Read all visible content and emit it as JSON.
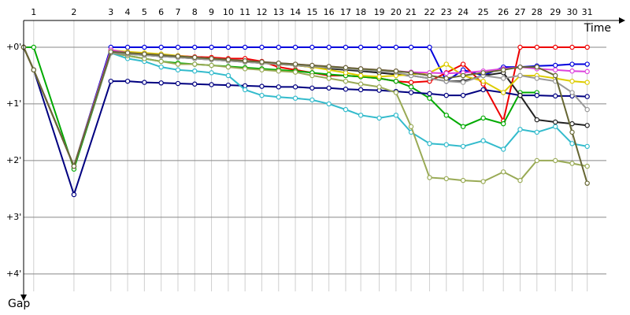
{
  "chart_data": {
    "type": "line",
    "x_label": "Time",
    "y_label": "Gap",
    "x": [
      0,
      0.6,
      3.0,
      5.2,
      6.2,
      7.2,
      8.2,
      9.2,
      10.2,
      11.2,
      12.2,
      13.2,
      14.2,
      15.2,
      16.2,
      17.2,
      18.2,
      19.2,
      20.1,
      21.2,
      22.2,
      23.1,
      24.2,
      25.2,
      26.2,
      27.4,
      28.6,
      29.6,
      30.6,
      31.7,
      32.7,
      33.6
    ],
    "xlim": [
      0,
      36.15
    ],
    "xticks": [
      {
        "value": 0.6,
        "label": "1"
      },
      {
        "value": 3.0,
        "label": "2"
      },
      {
        "value": 5.2,
        "label": "3"
      },
      {
        "value": 6.2,
        "label": "4"
      },
      {
        "value": 7.2,
        "label": "5"
      },
      {
        "value": 8.2,
        "label": "6"
      },
      {
        "value": 9.2,
        "label": "7"
      },
      {
        "value": 10.2,
        "label": "8"
      },
      {
        "value": 11.2,
        "label": "9"
      },
      {
        "value": 12.2,
        "label": "10"
      },
      {
        "value": 13.2,
        "label": "11"
      },
      {
        "value": 14.2,
        "label": "12"
      },
      {
        "value": 15.2,
        "label": "13"
      },
      {
        "value": 16.2,
        "label": "14"
      },
      {
        "value": 17.2,
        "label": "15"
      },
      {
        "value": 18.2,
        "label": "16"
      },
      {
        "value": 19.2,
        "label": "17"
      },
      {
        "value": 20.1,
        "label": "18"
      },
      {
        "value": 21.2,
        "label": "19"
      },
      {
        "value": 22.2,
        "label": "20"
      },
      {
        "value": 23.1,
        "label": "21"
      },
      {
        "value": 24.2,
        "label": "22"
      },
      {
        "value": 25.2,
        "label": "23"
      },
      {
        "value": 26.2,
        "label": "24"
      },
      {
        "value": 27.4,
        "label": "25"
      },
      {
        "value": 28.6,
        "label": "26"
      },
      {
        "value": 29.6,
        "label": "27"
      },
      {
        "value": 30.6,
        "label": "28"
      },
      {
        "value": 31.7,
        "label": "29"
      },
      {
        "value": 32.7,
        "label": "30"
      },
      {
        "value": 33.6,
        "label": "31"
      }
    ],
    "ylim": [
      -0.472,
      4.6
    ],
    "yticks": [
      {
        "value": 0,
        "label": "+0'"
      },
      {
        "value": 1,
        "label": "+1'"
      },
      {
        "value": 2,
        "label": "+2'"
      },
      {
        "value": 3,
        "label": "+3'"
      },
      {
        "value": 4,
        "label": "+4'"
      }
    ],
    "inverted_y": true,
    "grid": true,
    "series": [
      {
        "color": "#0000dd",
        "values": [
          0,
          0.4,
          2.1,
          0,
          0,
          0,
          0,
          0,
          0,
          0,
          0,
          0,
          0,
          0,
          0,
          0,
          0,
          0,
          0,
          0,
          0,
          0,
          0,
          0.6,
          0.4,
          0.5,
          0.35,
          0.35,
          0.33,
          0.32,
          0.3,
          0.3
        ]
      },
      {
        "color": "#ee0000",
        "values": [
          0,
          0.4,
          2.1,
          0.05,
          0.1,
          0.12,
          0.14,
          0.15,
          0.17,
          0.18,
          0.2,
          0.2,
          0.25,
          0.35,
          0.4,
          0.45,
          0.5,
          0.5,
          0.52,
          0.55,
          0.6,
          0.62,
          0.6,
          0.45,
          0.3,
          0.65,
          1.3,
          0,
          0,
          0,
          0,
          0
        ]
      },
      {
        "color": "#00aa00",
        "values": [
          0,
          0,
          2.15,
          0.1,
          0.15,
          0.2,
          0.25,
          0.28,
          0.3,
          0.32,
          0.34,
          0.36,
          0.38,
          0.4,
          0.42,
          0.45,
          0.48,
          0.5,
          0.52,
          0.55,
          0.6,
          0.7,
          0.9,
          1.2,
          1.4,
          1.25,
          1.35,
          0.8,
          0.8,
          null,
          null,
          null
        ]
      },
      {
        "color": "#000080",
        "values": [
          0,
          0.4,
          2.6,
          0.6,
          0.6,
          0.62,
          0.63,
          0.64,
          0.65,
          0.66,
          0.67,
          0.68,
          0.69,
          0.7,
          0.7,
          0.72,
          0.72,
          0.74,
          0.75,
          0.76,
          0.78,
          0.8,
          0.82,
          0.85,
          0.85,
          0.75,
          0.8,
          0.85,
          0.85,
          0.86,
          0.86,
          0.87
        ]
      },
      {
        "color": "#33bbcc",
        "values": [
          0,
          0.4,
          2.1,
          0.1,
          0.2,
          0.25,
          0.35,
          0.4,
          0.42,
          0.45,
          0.5,
          0.75,
          0.85,
          0.88,
          0.9,
          0.93,
          1.0,
          1.1,
          1.2,
          1.25,
          1.2,
          1.5,
          1.7,
          1.72,
          1.75,
          1.65,
          1.8,
          1.45,
          1.5,
          1.4,
          1.7,
          1.75
        ]
      },
      {
        "color": "#99aa55",
        "values": [
          0,
          0.4,
          2.1,
          0.1,
          0.15,
          0.2,
          0.25,
          0.3,
          0.3,
          0.32,
          0.35,
          0.38,
          0.4,
          0.42,
          0.44,
          0.5,
          0.55,
          0.6,
          0.65,
          0.7,
          0.8,
          1.4,
          2.3,
          2.32,
          2.35,
          2.37,
          2.2,
          2.35,
          2.0,
          2.0,
          2.05,
          2.1
        ]
      },
      {
        "color": "#222222",
        "values": [
          0,
          0.4,
          2.1,
          0.1,
          0.12,
          0.14,
          0.16,
          0.18,
          0.2,
          0.22,
          0.24,
          0.26,
          0.28,
          0.3,
          0.32,
          0.35,
          0.38,
          0.4,
          0.42,
          0.45,
          0.48,
          0.5,
          0.55,
          0.6,
          0.6,
          0.5,
          0.45,
          0.85,
          1.28,
          1.32,
          1.35,
          1.38
        ]
      },
      {
        "color": "#ddcc00",
        "values": [
          0,
          0.4,
          2.1,
          0.05,
          0.08,
          0.1,
          0.12,
          0.15,
          0.18,
          0.2,
          0.22,
          0.25,
          0.28,
          0.3,
          0.32,
          0.35,
          0.4,
          0.45,
          0.5,
          0.52,
          0.5,
          0.48,
          0.45,
          0.3,
          0.5,
          0.6,
          0.8,
          0.5,
          0.5,
          0.55,
          0.6,
          0.62
        ]
      },
      {
        "color": "#dd44dd",
        "values": [
          0,
          0.4,
          2.1,
          0.05,
          0.1,
          0.12,
          0.14,
          0.16,
          0.18,
          0.2,
          0.22,
          0.24,
          0.26,
          0.28,
          0.3,
          0.32,
          0.34,
          0.36,
          0.38,
          0.4,
          0.42,
          0.44,
          0.45,
          0.46,
          0.45,
          0.42,
          0.38,
          0.35,
          0.38,
          0.4,
          0.42,
          0.43
        ]
      },
      {
        "color": "#999999",
        "values": [
          0,
          0.4,
          2.1,
          0.1,
          0.12,
          0.14,
          0.16,
          0.18,
          0.2,
          0.22,
          0.24,
          0.26,
          0.28,
          0.3,
          0.32,
          0.34,
          0.36,
          0.38,
          0.4,
          0.42,
          0.44,
          0.5,
          0.55,
          0.6,
          0.62,
          0.5,
          0.55,
          0.5,
          0.55,
          0.6,
          0.8,
          1.1
        ]
      },
      {
        "color": "#666633",
        "values": [
          0,
          0.4,
          2.1,
          0.08,
          0.1,
          0.12,
          0.14,
          0.16,
          0.18,
          0.2,
          0.22,
          0.24,
          0.26,
          0.28,
          0.3,
          0.32,
          0.34,
          0.36,
          0.38,
          0.4,
          0.42,
          0.45,
          0.5,
          0.55,
          0.5,
          0.45,
          0.4,
          0.35,
          0.35,
          0.5,
          1.5,
          2.4
        ]
      }
    ]
  }
}
